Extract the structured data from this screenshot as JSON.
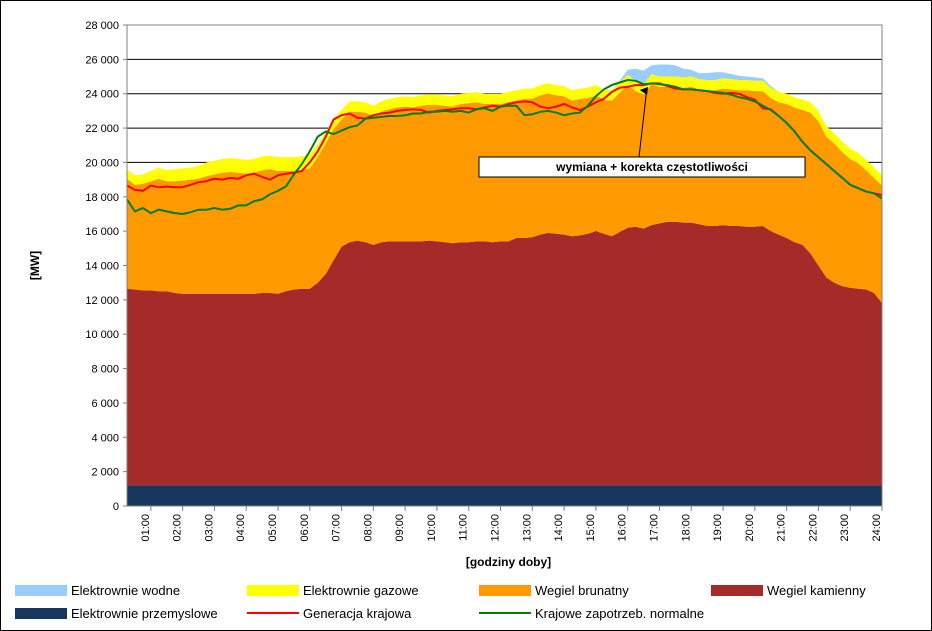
{
  "chart_data": {
    "type": "area",
    "title": "",
    "xlabel": "[godziny doby]",
    "ylabel": "[MW]",
    "ylim": [
      0,
      28000
    ],
    "y_ticks": [
      "0",
      "2 000",
      "4 000",
      "6 000",
      "8 000",
      "10 000",
      "12 000",
      "14 000",
      "16 000",
      "18 000",
      "20 000",
      "22 000",
      "24 000",
      "26 000",
      "28 000"
    ],
    "x_tick_labels": [
      "01:00",
      "02:00",
      "03:00",
      "04:00",
      "05:00",
      "06:00",
      "07:00",
      "08:00",
      "09:00",
      "10:00",
      "11:00",
      "12:00",
      "13:00",
      "14:00",
      "15:00",
      "16:00",
      "17:00",
      "18:00",
      "19:00",
      "20:00",
      "21:00",
      "22:00",
      "23:00",
      "24:00"
    ],
    "x_range_hours": [
      0.25,
      24
    ],
    "grid": "horizontal",
    "legend_position": "bottom",
    "annotation": {
      "text": "wymiana + korekta częstotliwości",
      "points_to_hour": 16.25,
      "points_to_value": 24400
    },
    "x_hours": [
      0.25,
      0.5,
      0.75,
      1,
      1.25,
      1.5,
      1.75,
      2,
      2.25,
      2.5,
      2.75,
      3,
      3.25,
      3.5,
      3.75,
      4,
      4.25,
      4.5,
      4.75,
      5,
      5.25,
      5.5,
      5.75,
      6,
      6.25,
      6.5,
      6.75,
      7,
      7.25,
      7.5,
      7.75,
      8,
      8.25,
      8.5,
      8.75,
      9,
      9.25,
      9.5,
      9.75,
      10,
      10.25,
      10.5,
      10.75,
      11,
      11.25,
      11.5,
      11.75,
      12,
      12.25,
      12.5,
      12.75,
      13,
      13.25,
      13.5,
      13.75,
      14,
      14.25,
      14.5,
      14.75,
      15,
      15.25,
      15.5,
      15.75,
      16,
      16.25,
      16.5,
      16.75,
      17,
      17.25,
      17.5,
      17.75,
      18,
      18.25,
      18.5,
      18.75,
      19,
      19.25,
      19.5,
      19.75,
      20,
      20.25,
      20.5,
      20.75,
      21,
      21.25,
      21.5,
      21.75,
      22,
      22.25,
      22.5,
      22.75,
      23,
      23.25,
      23.5,
      23.75,
      24
    ],
    "series": [
      {
        "name": "Elektrownie przemyslowe",
        "color": "#17365d",
        "values": [
          1200,
          1200,
          1200,
          1200,
          1200,
          1200,
          1200,
          1200,
          1200,
          1200,
          1200,
          1200,
          1200,
          1200,
          1200,
          1200,
          1200,
          1200,
          1200,
          1200,
          1200,
          1200,
          1200,
          1200,
          1200,
          1200,
          1200,
          1200,
          1200,
          1200,
          1200,
          1200,
          1200,
          1200,
          1200,
          1200,
          1200,
          1200,
          1200,
          1200,
          1200,
          1200,
          1200,
          1200,
          1200,
          1200,
          1200,
          1200,
          1200,
          1200,
          1200,
          1200,
          1200,
          1200,
          1200,
          1200,
          1200,
          1200,
          1200,
          1200,
          1200,
          1200,
          1200,
          1200,
          1200,
          1200,
          1200,
          1200,
          1200,
          1200,
          1200,
          1200,
          1200,
          1200,
          1200,
          1200,
          1200,
          1200,
          1200,
          1200,
          1200,
          1200,
          1200,
          1200,
          1200,
          1200,
          1200,
          1200,
          1200,
          1200,
          1200,
          1200,
          1200,
          1200,
          1200,
          1200
        ]
      },
      {
        "name": "Wegiel kamienny",
        "color": "#a52a2a",
        "values": [
          11450,
          11400,
          11350,
          11350,
          11300,
          11300,
          11200,
          11150,
          11150,
          11150,
          11150,
          11150,
          11150,
          11150,
          11150,
          11150,
          11150,
          11200,
          11200,
          11150,
          11300,
          11400,
          11450,
          11450,
          11800,
          12300,
          13100,
          13900,
          14150,
          14250,
          14150,
          14000,
          14150,
          14200,
          14200,
          14200,
          14200,
          14200,
          14250,
          14200,
          14150,
          14100,
          14150,
          14150,
          14200,
          14200,
          14150,
          14200,
          14200,
          14400,
          14400,
          14450,
          14600,
          14700,
          14650,
          14600,
          14500,
          14550,
          14650,
          14800,
          14650,
          14500,
          14750,
          15000,
          15050,
          14950,
          15150,
          15250,
          15350,
          15350,
          15300,
          15300,
          15200,
          15100,
          15100,
          15150,
          15100,
          15100,
          15050,
          15050,
          15100,
          14800,
          14600,
          14400,
          14150,
          14000,
          13500,
          12800,
          12100,
          11800,
          11600,
          11500,
          11450,
          11400,
          11200,
          10600
        ]
      },
      {
        "name": "Wegiel brunatny",
        "color": "#ff9900",
        "values": [
          6400,
          6100,
          6200,
          6350,
          6550,
          6400,
          6500,
          6600,
          6650,
          6700,
          6850,
          6950,
          7050,
          7100,
          7050,
          7000,
          7050,
          7150,
          7200,
          7150,
          7000,
          6900,
          6900,
          7000,
          7300,
          7600,
          7650,
          7400,
          7600,
          7500,
          7550,
          7500,
          7600,
          7700,
          7800,
          7850,
          7800,
          7900,
          7900,
          7950,
          7950,
          7950,
          8050,
          8100,
          8100,
          8000,
          8050,
          8000,
          8100,
          8000,
          8100,
          8050,
          8100,
          8100,
          8050,
          8050,
          7900,
          7950,
          7900,
          7900,
          7800,
          7900,
          8100,
          8300,
          7900,
          7800,
          8200,
          7950,
          7850,
          7850,
          7850,
          7900,
          7850,
          7900,
          7900,
          7950,
          7950,
          7900,
          7950,
          7900,
          7850,
          7750,
          7700,
          7800,
          7850,
          7850,
          8200,
          8400,
          8200,
          8100,
          7800,
          7500,
          7300,
          6950,
          6700,
          6850
        ]
      },
      {
        "name": "Elektrownie gazowe",
        "color": "#ffff00",
        "values": [
          550,
          550,
          550,
          600,
          650,
          650,
          700,
          700,
          700,
          750,
          800,
          800,
          800,
          800,
          800,
          800,
          800,
          800,
          800,
          800,
          800,
          800,
          800,
          800,
          750,
          650,
          600,
          550,
          600,
          600,
          600,
          600,
          600,
          600,
          600,
          600,
          600,
          600,
          600,
          600,
          600,
          600,
          600,
          600,
          600,
          600,
          600,
          600,
          600,
          600,
          600,
          600,
          600,
          600,
          600,
          600,
          600,
          600,
          600,
          600,
          600,
          600,
          600,
          600,
          600,
          600,
          600,
          600,
          600,
          600,
          600,
          600,
          600,
          600,
          600,
          600,
          600,
          600,
          600,
          600,
          600,
          600,
          600,
          600,
          600,
          600,
          600,
          600,
          600,
          600,
          600,
          600,
          600,
          600,
          600,
          600
        ]
      },
      {
        "name": "Elektrownie wodne",
        "color": "#99ccff",
        "values": [
          0,
          0,
          0,
          0,
          0,
          0,
          0,
          0,
          0,
          0,
          0,
          0,
          0,
          0,
          0,
          0,
          0,
          0,
          0,
          0,
          0,
          0,
          0,
          0,
          0,
          0,
          0,
          0,
          0,
          0,
          0,
          0,
          0,
          0,
          0,
          0,
          0,
          0,
          0,
          0,
          0,
          0,
          0,
          0,
          0,
          0,
          0,
          0,
          0,
          0,
          0,
          0,
          0,
          0,
          0,
          0,
          0,
          0,
          0,
          0,
          0,
          0,
          100,
          300,
          700,
          800,
          500,
          700,
          700,
          650,
          500,
          400,
          350,
          400,
          450,
          350,
          300,
          250,
          200,
          200,
          150,
          100,
          0,
          0,
          0,
          0,
          0,
          0,
          0,
          0,
          0,
          0,
          0,
          0,
          0,
          0
        ]
      },
      {
        "name": "Generacja krajowa",
        "color": "#ff0000",
        "line": true,
        "values": [
          18650,
          18400,
          18350,
          18650,
          18550,
          18600,
          18550,
          18550,
          18700,
          18850,
          18900,
          19050,
          19000,
          19100,
          19050,
          19250,
          19350,
          19150,
          19000,
          19250,
          19350,
          19400,
          19500,
          20000,
          20650,
          21500,
          22500,
          22750,
          22850,
          22600,
          22550,
          22750,
          22850,
          22900,
          23000,
          23050,
          23100,
          23050,
          22900,
          23000,
          23050,
          23100,
          23150,
          23150,
          23100,
          23200,
          23300,
          23250,
          23400,
          23500,
          23550,
          23500,
          23250,
          23150,
          23250,
          23400,
          23200,
          23050,
          23250,
          23500,
          23700,
          24100,
          24350,
          24400,
          24500,
          24500,
          24600,
          24600,
          24450,
          24300,
          24250,
          24250,
          24200,
          24150,
          24050,
          24000,
          24050,
          24000,
          23800,
          23650,
          23150,
          23100,
          22700,
          22300,
          21800,
          21200,
          20700,
          20300,
          19900,
          19500,
          19100,
          18700,
          18500,
          18300,
          18200,
          18100
        ]
      },
      {
        "name": "Krajowe zapotrzeb. normalne",
        "color": "#008000",
        "line": true,
        "values": [
          17850,
          17150,
          17350,
          17050,
          17250,
          17150,
          17050,
          17000,
          17100,
          17250,
          17250,
          17350,
          17250,
          17300,
          17500,
          17500,
          17750,
          17850,
          18150,
          18350,
          18600,
          19300,
          19900,
          20650,
          21500,
          21800,
          21650,
          21850,
          22050,
          22150,
          22550,
          22600,
          22650,
          22700,
          22700,
          22750,
          22850,
          22850,
          22950,
          22950,
          23000,
          22950,
          23000,
          22900,
          23100,
          23150,
          23000,
          23250,
          23300,
          23300,
          22750,
          22800,
          22950,
          23000,
          22900,
          22750,
          22850,
          22900,
          23300,
          23850,
          24250,
          24500,
          24650,
          24800,
          24750,
          24550,
          24600,
          24550,
          24500,
          24400,
          24250,
          24250,
          24200,
          24150,
          24100,
          24050,
          23950,
          23800,
          23700,
          23550,
          23300,
          23050,
          22700,
          22300,
          21800,
          21200,
          20700,
          20300,
          19900,
          19500,
          19100,
          18700,
          18500,
          18300,
          18200,
          17900
        ]
      }
    ],
    "legend": [
      "Elektrownie wodne",
      "Elektrownie gazowe",
      "Wegiel brunatny",
      "Wegiel kamienny",
      "Elektrownie przemyslowe",
      "Generacja krajowa",
      "Krajowe zapotrzeb. normalne"
    ]
  }
}
